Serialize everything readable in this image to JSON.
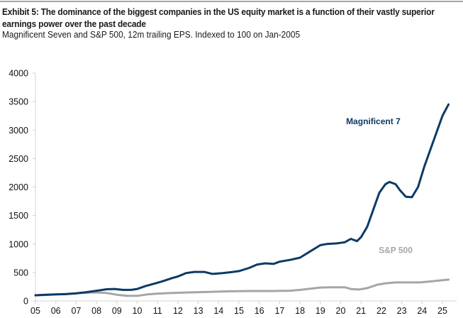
{
  "header": {
    "title": "Exhibit 5: The dominance of the biggest companies in the US equity market is a function of their vastly superior earnings power over the past decade",
    "subtitle": "Magnificent Seven and S&P 500, 12m trailing EPS. Indexed to 100 on Jan-2005"
  },
  "chart_data": {
    "type": "line",
    "title": "Exhibit 5: The dominance of the biggest companies in the US equity market is a function of their vastly superior earnings power over the past decade",
    "subtitle": "Magnificent Seven and S&P 500, 12m trailing EPS. Indexed to 100 on Jan-2005",
    "xlabel": "",
    "ylabel": "",
    "xlim": [
      2005,
      2025.8
    ],
    "ylim": [
      0,
      4000
    ],
    "yticks": [
      0,
      500,
      1000,
      1500,
      2000,
      2500,
      3000,
      3500,
      4000
    ],
    "ytick_labels": [
      "0",
      "500",
      "1000",
      "1500",
      "2000",
      "2500",
      "3000",
      "3500",
      "4000"
    ],
    "xticks": [
      2005,
      2006,
      2007,
      2008,
      2009,
      2010,
      2011,
      2012,
      2013,
      2014,
      2015,
      2016,
      2017,
      2018,
      2019,
      2020,
      2021,
      2022,
      2023,
      2024,
      2025
    ],
    "xtick_labels": [
      "05",
      "06",
      "07",
      "08",
      "09",
      "10",
      "11",
      "12",
      "13",
      "14",
      "15",
      "16",
      "17",
      "18",
      "19",
      "20",
      "21",
      "22",
      "23",
      "24",
      "25"
    ],
    "grid": false,
    "legend": "inline-labels",
    "series": [
      {
        "name": "Magnificent 7",
        "color": "#0b3a66",
        "label_position": {
          "x": 2021.6,
          "y": 3100
        },
        "points": [
          [
            2005.0,
            100
          ],
          [
            2005.5,
            110
          ],
          [
            2006.0,
            115
          ],
          [
            2006.5,
            120
          ],
          [
            2007.0,
            135
          ],
          [
            2007.5,
            155
          ],
          [
            2008.0,
            180
          ],
          [
            2008.5,
            205
          ],
          [
            2008.9,
            210
          ],
          [
            2009.3,
            195
          ],
          [
            2009.7,
            195
          ],
          [
            2010.0,
            210
          ],
          [
            2010.4,
            260
          ],
          [
            2010.8,
            300
          ],
          [
            2011.2,
            340
          ],
          [
            2011.7,
            400
          ],
          [
            2012.0,
            430
          ],
          [
            2012.4,
            490
          ],
          [
            2012.8,
            510
          ],
          [
            2013.3,
            510
          ],
          [
            2013.7,
            475
          ],
          [
            2014.2,
            490
          ],
          [
            2014.7,
            510
          ],
          [
            2015.0,
            525
          ],
          [
            2015.5,
            580
          ],
          [
            2015.9,
            640
          ],
          [
            2016.3,
            660
          ],
          [
            2016.7,
            650
          ],
          [
            2017.0,
            690
          ],
          [
            2017.5,
            720
          ],
          [
            2018.0,
            760
          ],
          [
            2018.5,
            870
          ],
          [
            2019.0,
            980
          ],
          [
            2019.3,
            1000
          ],
          [
            2019.8,
            1010
          ],
          [
            2020.2,
            1030
          ],
          [
            2020.5,
            1090
          ],
          [
            2020.8,
            1050
          ],
          [
            2021.0,
            1120
          ],
          [
            2021.3,
            1300
          ],
          [
            2021.6,
            1600
          ],
          [
            2021.9,
            1900
          ],
          [
            2022.2,
            2050
          ],
          [
            2022.4,
            2090
          ],
          [
            2022.7,
            2050
          ],
          [
            2022.9,
            1950
          ],
          [
            2023.2,
            1830
          ],
          [
            2023.5,
            1820
          ],
          [
            2023.8,
            2000
          ],
          [
            2024.1,
            2350
          ],
          [
            2024.4,
            2650
          ],
          [
            2024.7,
            2950
          ],
          [
            2025.0,
            3250
          ],
          [
            2025.3,
            3450
          ]
        ]
      },
      {
        "name": "S&P 500",
        "color": "#a6a6a6",
        "label_position": {
          "x": 2022.7,
          "y": 840
        },
        "points": [
          [
            2005.0,
            100
          ],
          [
            2005.5,
            105
          ],
          [
            2006.0,
            115
          ],
          [
            2006.5,
            125
          ],
          [
            2007.0,
            135
          ],
          [
            2007.5,
            145
          ],
          [
            2008.0,
            150
          ],
          [
            2008.5,
            140
          ],
          [
            2009.0,
            110
          ],
          [
            2009.5,
            90
          ],
          [
            2010.0,
            90
          ],
          [
            2010.5,
            115
          ],
          [
            2011.0,
            130
          ],
          [
            2011.7,
            140
          ],
          [
            2012.5,
            150
          ],
          [
            2013.5,
            160
          ],
          [
            2014.5,
            170
          ],
          [
            2015.5,
            175
          ],
          [
            2016.5,
            175
          ],
          [
            2017.5,
            180
          ],
          [
            2018.0,
            195
          ],
          [
            2018.5,
            215
          ],
          [
            2019.0,
            235
          ],
          [
            2019.5,
            240
          ],
          [
            2020.2,
            240
          ],
          [
            2020.5,
            210
          ],
          [
            2020.9,
            200
          ],
          [
            2021.3,
            225
          ],
          [
            2021.8,
            285
          ],
          [
            2022.2,
            310
          ],
          [
            2022.7,
            325
          ],
          [
            2023.3,
            325
          ],
          [
            2023.9,
            325
          ],
          [
            2024.5,
            345
          ],
          [
            2025.3,
            375
          ]
        ]
      }
    ]
  }
}
